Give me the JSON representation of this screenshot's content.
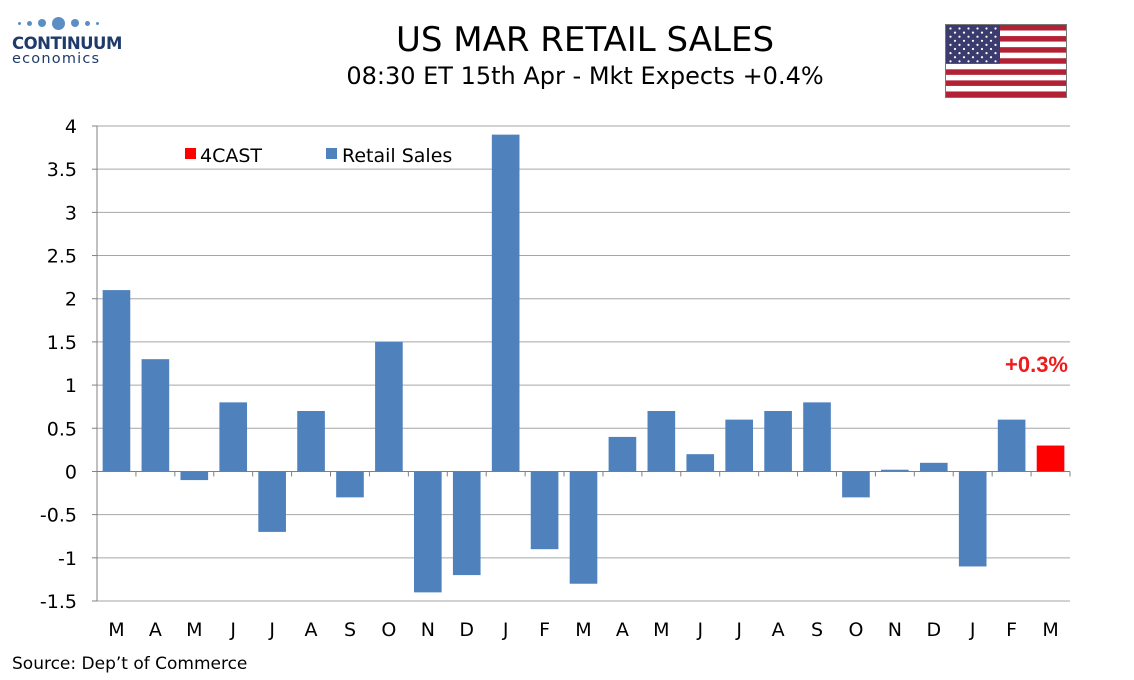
{
  "header": {
    "logo_name": "CONTINUUM",
    "logo_sub": "economics",
    "title": "US MAR RETAIL SALES",
    "subtitle": "08:30 ET 15th Apr - Mkt Expects +0.4%"
  },
  "flag_icon": "us-flag-icon",
  "footer": {
    "source": "Source: Dep’t of Commerce"
  },
  "chart_data": {
    "type": "bar",
    "title": "",
    "xlabel": "",
    "ylabel": "",
    "ylim": [
      -1.5,
      4
    ],
    "yticks": [
      4,
      3.5,
      3,
      2.5,
      2,
      1.5,
      1,
      0.5,
      0,
      -0.5,
      -1,
      -1.5
    ],
    "grid": true,
    "legend": {
      "placement": "top-left",
      "entries": [
        "4CAST",
        "Retail Sales"
      ]
    },
    "categories": [
      "M",
      "A",
      "M",
      "J",
      "J",
      "A",
      "S",
      "O",
      "N",
      "D",
      "J",
      "F",
      "M",
      "A",
      "M",
      "J",
      "J",
      "A",
      "S",
      "O",
      "N",
      "D",
      "J",
      "F",
      "M"
    ],
    "series": [
      {
        "name": "Retail Sales",
        "color": "#4f81bd",
        "values": [
          2.1,
          1.3,
          -0.1,
          0.8,
          -0.7,
          0.7,
          -0.3,
          1.5,
          -1.4,
          -1.2,
          3.9,
          -0.9,
          -1.3,
          0.4,
          0.7,
          0.2,
          0.6,
          0.7,
          0.8,
          -0.3,
          0.02,
          0.1,
          -1.1,
          0.6,
          null
        ]
      },
      {
        "name": "4CAST",
        "color": "#ff0000",
        "values": [
          null,
          null,
          null,
          null,
          null,
          null,
          null,
          null,
          null,
          null,
          null,
          null,
          null,
          null,
          null,
          null,
          null,
          null,
          null,
          null,
          null,
          null,
          null,
          null,
          0.3
        ]
      }
    ],
    "annotation": {
      "text": "+0.3%",
      "color": "#ee1c1c",
      "category_index": 24,
      "value": 0.3
    }
  }
}
